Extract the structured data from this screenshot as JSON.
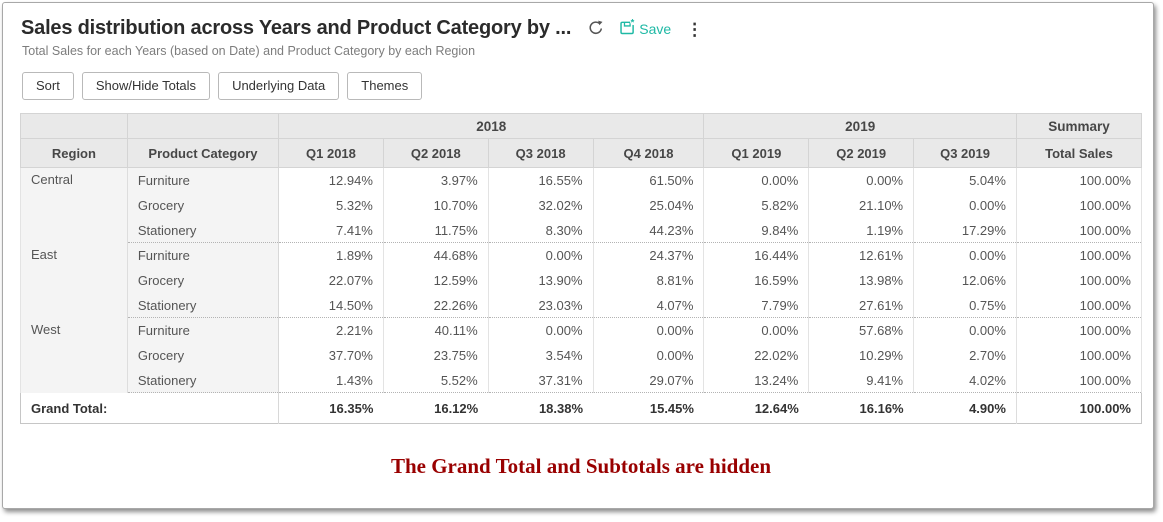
{
  "header": {
    "title": "Sales distribution across Years and Product Category by ...",
    "subtitle": "Total Sales for each Years (based on Date) and Product Category by each Region",
    "save_label": "Save"
  },
  "toolbar": {
    "sort_label": "Sort",
    "totals_label": "Show/Hide Totals",
    "underlying_label": "Underlying Data",
    "themes_label": "Themes"
  },
  "table": {
    "col_groups": [
      {
        "label": "2018",
        "span": 4
      },
      {
        "label": "2019",
        "span": 3
      },
      {
        "label": "Summary",
        "span": 1
      }
    ],
    "columns": [
      "Region",
      "Product Category",
      "Q1 2018",
      "Q2 2018",
      "Q3 2018",
      "Q4 2018",
      "Q1 2019",
      "Q2 2019",
      "Q3 2019",
      "Total Sales"
    ],
    "groups": [
      {
        "region": "Central",
        "rows": [
          {
            "category": "Furniture",
            "values": [
              "12.94%",
              "3.97%",
              "16.55%",
              "61.50%",
              "0.00%",
              "0.00%",
              "5.04%",
              "100.00%"
            ]
          },
          {
            "category": "Grocery",
            "values": [
              "5.32%",
              "10.70%",
              "32.02%",
              "25.04%",
              "5.82%",
              "21.10%",
              "0.00%",
              "100.00%"
            ]
          },
          {
            "category": "Stationery",
            "values": [
              "7.41%",
              "11.75%",
              "8.30%",
              "44.23%",
              "9.84%",
              "1.19%",
              "17.29%",
              "100.00%"
            ]
          }
        ]
      },
      {
        "region": "East",
        "rows": [
          {
            "category": "Furniture",
            "values": [
              "1.89%",
              "44.68%",
              "0.00%",
              "24.37%",
              "16.44%",
              "12.61%",
              "0.00%",
              "100.00%"
            ]
          },
          {
            "category": "Grocery",
            "values": [
              "22.07%",
              "12.59%",
              "13.90%",
              "8.81%",
              "16.59%",
              "13.98%",
              "12.06%",
              "100.00%"
            ]
          },
          {
            "category": "Stationery",
            "values": [
              "14.50%",
              "22.26%",
              "23.03%",
              "4.07%",
              "7.79%",
              "27.61%",
              "0.75%",
              "100.00%"
            ]
          }
        ]
      },
      {
        "region": "West",
        "rows": [
          {
            "category": "Furniture",
            "values": [
              "2.21%",
              "40.11%",
              "0.00%",
              "0.00%",
              "0.00%",
              "57.68%",
              "0.00%",
              "100.00%"
            ]
          },
          {
            "category": "Grocery",
            "values": [
              "37.70%",
              "23.75%",
              "3.54%",
              "0.00%",
              "22.02%",
              "10.29%",
              "2.70%",
              "100.00%"
            ]
          },
          {
            "category": "Stationery",
            "values": [
              "1.43%",
              "5.52%",
              "37.31%",
              "29.07%",
              "13.24%",
              "9.41%",
              "4.02%",
              "100.00%"
            ]
          }
        ]
      }
    ],
    "grand_total": {
      "label": "Grand Total:",
      "values": [
        "16.35%",
        "16.12%",
        "18.38%",
        "15.45%",
        "12.64%",
        "16.16%",
        "4.90%",
        "100.00%"
      ]
    }
  },
  "annotation": {
    "text": "The Grand Total and Subtotals are hidden",
    "color": "#990000"
  },
  "colors": {
    "accent_teal": "#1fb9a5",
    "header_bg": "#e9e9e9",
    "label_bg": "#f4f4f4",
    "annotation_red": "#990000"
  }
}
